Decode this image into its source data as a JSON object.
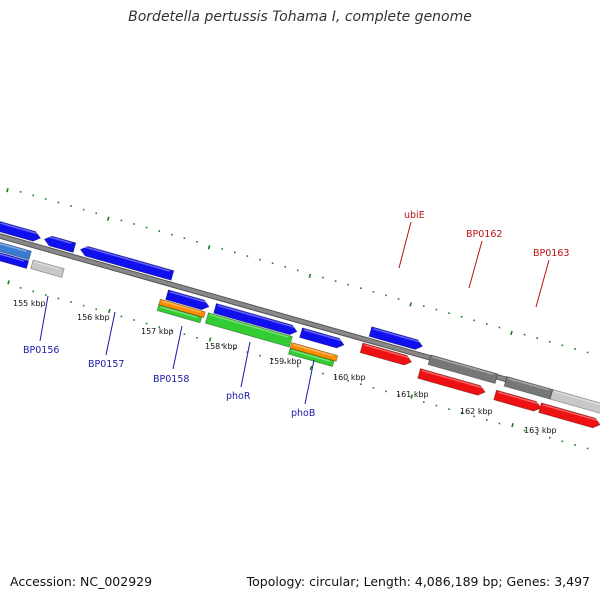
{
  "title": "Bordetella pertussis Tohama I, complete genome",
  "footer": {
    "accession": "Accession: NC_002929",
    "summary": "Topology: circular; Length: 4,086,189 bp; Genes: 3,497"
  },
  "colors": {
    "backbone": "#888888",
    "tick": "#1e7a1e",
    "forward_cds": "#1010ee",
    "reverse_cds": "#ee1111",
    "label_forward": "#1a1aa8",
    "label_reverse": "#bb1111",
    "orange": "#ff8c00",
    "green": "#33cc33",
    "gray_dark": "#777777",
    "gray_light": "#c8c8c8"
  },
  "tick_labels": [
    "155 kbp",
    "156 kbp",
    "157 kbp",
    "158 kbp",
    "159 kbp",
    "160 kbp",
    "161 kbp",
    "162 kbp",
    "163 kbp"
  ],
  "gene_labels_bottom": [
    "BP0156",
    "BP0157",
    "BP0158",
    "phoR",
    "phoB"
  ],
  "gene_labels_top": [
    "ubiE",
    "BP0162",
    "BP0163"
  ]
}
